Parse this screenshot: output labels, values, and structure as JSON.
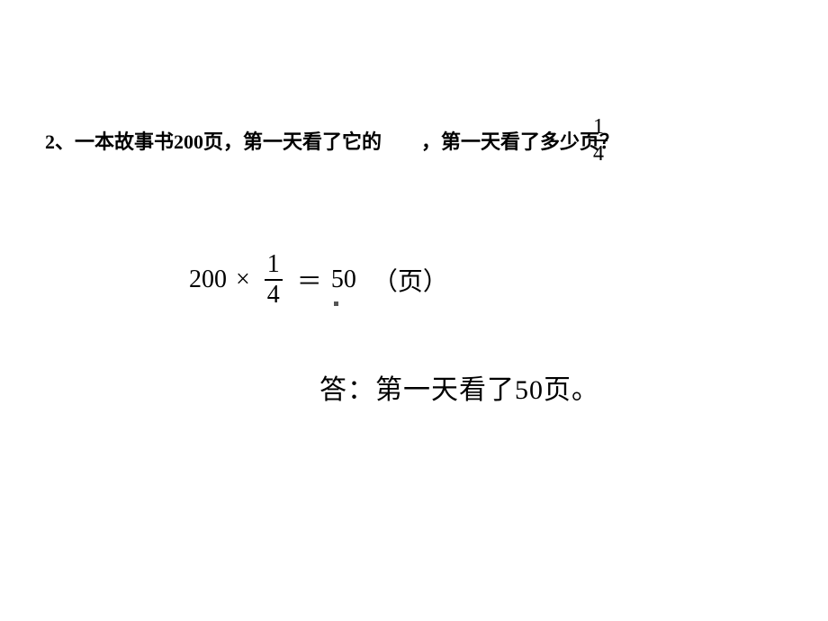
{
  "problem": {
    "prefix": "2、一本故事书200页，第一天看了它的",
    "gap": "　　",
    "suffix": "，第一天看了多少页？",
    "fontsize": 22,
    "fontweight": "bold",
    "color": "#000000",
    "fraction": {
      "num": "1",
      "den": "4",
      "fontsize": 24
    }
  },
  "equation": {
    "lhs_value": "200",
    "operator": "×",
    "fraction": {
      "num": "1",
      "den": "4"
    },
    "equals": "＝",
    "result": "50",
    "unit": "（页）",
    "fontsize": 28,
    "color": "#000000"
  },
  "answer": {
    "text": "答：第一天看了50页。",
    "fontsize": 30,
    "color": "#000000"
  },
  "colors": {
    "background": "#ffffff",
    "text": "#000000",
    "dot": "#555555"
  }
}
